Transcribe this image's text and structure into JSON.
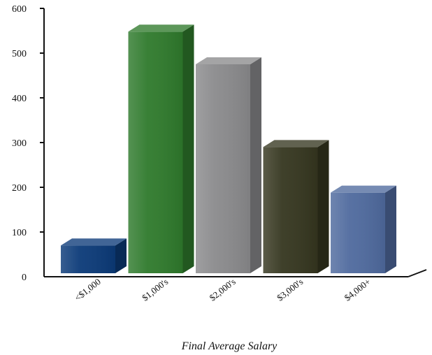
{
  "chart_data": {
    "type": "bar",
    "title": "",
    "xlabel": "Final Average Salary",
    "ylabel": "",
    "ylim": [
      0,
      600
    ],
    "yticks": [
      0,
      100,
      200,
      300,
      400,
      500,
      600
    ],
    "categories": [
      "<$1,000",
      "$1,000's",
      "$2,000's",
      "$3,000's",
      "$4,000+"
    ],
    "values": [
      70,
      548,
      475,
      290,
      188
    ],
    "colors": [
      "#0b3a78",
      "#2f7a2c",
      "#8a8a8c",
      "#35361f",
      "#4f6a9e"
    ],
    "grid": false,
    "legend": "none",
    "style": "3d"
  }
}
